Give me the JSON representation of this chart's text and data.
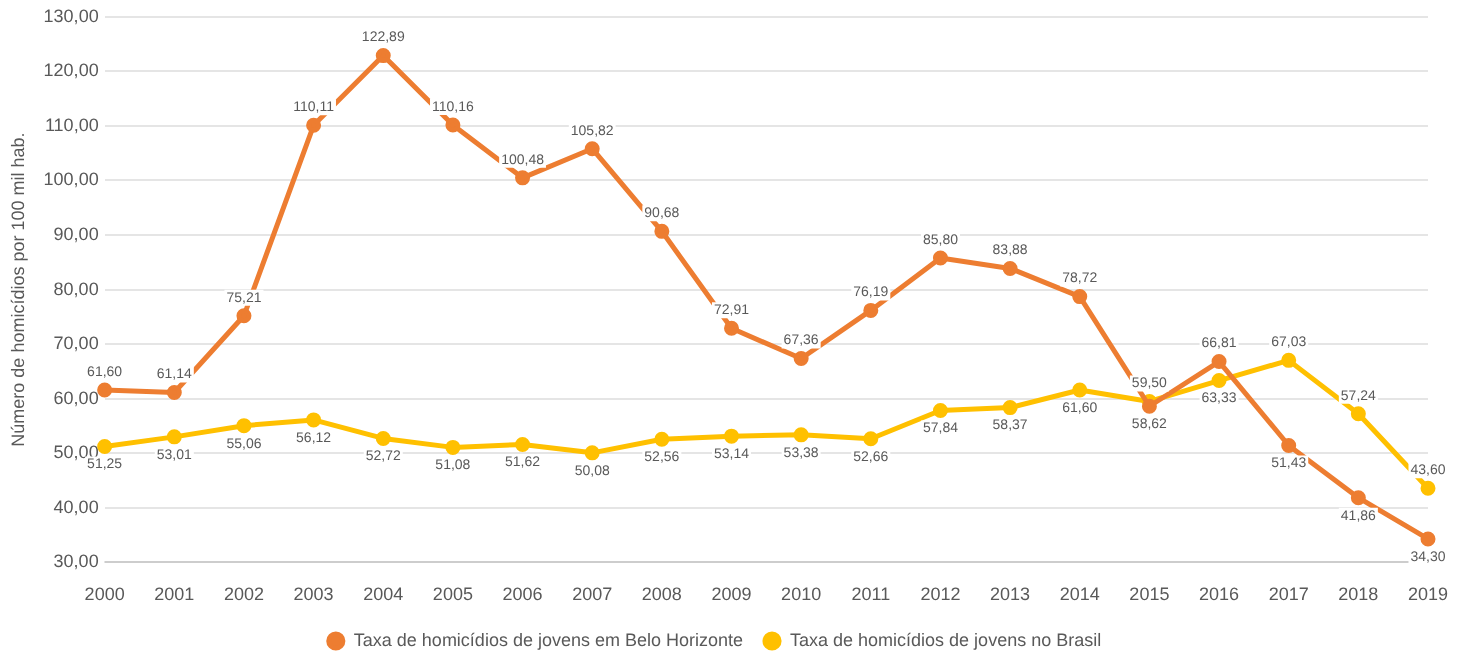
{
  "chart_data": {
    "type": "line",
    "ylabel": "Número de homicídios por 100 mil hab.",
    "categories": [
      "2000",
      "2001",
      "2002",
      "2003",
      "2004",
      "2005",
      "2006",
      "2007",
      "2008",
      "2009",
      "2010",
      "2011",
      "2012",
      "2013",
      "2014",
      "2015",
      "2016",
      "2017",
      "2018",
      "2019"
    ],
    "series": [
      {
        "name": "Taxa de homicídios de jovens em Belo Horizonte",
        "color": "#ed7d31",
        "values": [
          61.6,
          61.14,
          75.21,
          110.11,
          122.89,
          110.16,
          100.48,
          105.82,
          90.68,
          72.91,
          67.36,
          76.19,
          85.8,
          83.88,
          78.72,
          58.62,
          66.81,
          51.43,
          41.86,
          34.3
        ],
        "value_labels": [
          "61,60",
          "61,14",
          "75,21",
          "110,11",
          "122,89",
          "110,16",
          "100,48",
          "105,82",
          "90,68",
          "72,91",
          "67,36",
          "76,19",
          "85,80",
          "83,88",
          "78,72",
          "58,62",
          "66,81",
          "51,43",
          "41,86",
          "34,30"
        ]
      },
      {
        "name": "Taxa de homicídios de jovens no Brasil",
        "color": "#ffc000",
        "values": [
          51.25,
          53.01,
          55.06,
          56.12,
          52.72,
          51.08,
          51.62,
          50.08,
          52.56,
          53.14,
          53.38,
          52.66,
          57.84,
          58.37,
          61.6,
          59.5,
          63.33,
          67.03,
          57.24,
          43.6
        ],
        "value_labels": [
          "51,25",
          "53,01",
          "55,06",
          "56,12",
          "52,72",
          "51,08",
          "51,62",
          "50,08",
          "52,56",
          "53,14",
          "53,38",
          "52,66",
          "57,84",
          "58,37",
          "61,60",
          "59,50",
          "63,33",
          "67,03",
          "57,24",
          "43,60"
        ]
      }
    ],
    "ylim": [
      30,
      130
    ],
    "yticks": [
      {
        "value": 30,
        "label": "30,00"
      },
      {
        "value": 40,
        "label": "40,00"
      },
      {
        "value": 50,
        "label": "50,00"
      },
      {
        "value": 60,
        "label": "60,00"
      },
      {
        "value": 70,
        "label": "70,00"
      },
      {
        "value": 80,
        "label": "80,00"
      },
      {
        "value": 90,
        "label": "90,00"
      },
      {
        "value": 100,
        "label": "100,00"
      },
      {
        "value": 110,
        "label": "110,00"
      },
      {
        "value": 120,
        "label": "120,00"
      },
      {
        "value": 130,
        "label": "130,00"
      }
    ],
    "grid": "y",
    "legend": "bottom",
    "marker": "circle",
    "line_style": "solid"
  }
}
